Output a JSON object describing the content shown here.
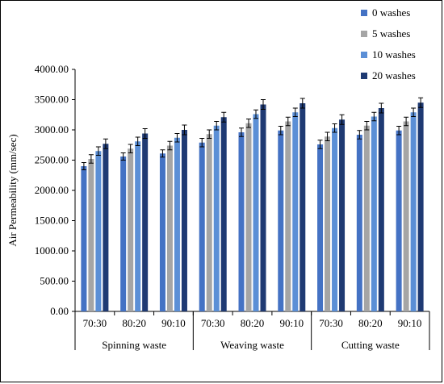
{
  "chart_data": {
    "type": "bar",
    "title": "",
    "ylabel": "Air Permeability (mm/sec)",
    "xlabel": "",
    "ylim": [
      0,
      4000
    ],
    "yticks": [
      0,
      500,
      1000,
      1500,
      2000,
      2500,
      3000,
      3500,
      4000
    ],
    "ytick_labels": [
      "0.00",
      "500.00",
      "1000.00",
      "1500.00",
      "2000.00",
      "2500.00",
      "3000.00",
      "3500.00",
      "4000.00"
    ],
    "grid": false,
    "legend_position": "top-right",
    "groups": [
      {
        "label": "Spinning waste",
        "categories": [
          "70:30",
          "80:20",
          "90:10"
        ]
      },
      {
        "label": "Weaving waste",
        "categories": [
          "70:30",
          "80:20",
          "90:10"
        ]
      },
      {
        "label": "Cutting waste",
        "categories": [
          "70:30",
          "80:20",
          "90:10"
        ]
      }
    ],
    "series": [
      {
        "name": "0 washes",
        "color": "#4472c4",
        "values": [
          2400,
          2560,
          2610,
          2790,
          2960,
          2990,
          2760,
          2920,
          2990
        ],
        "errors": [
          60,
          60,
          60,
          70,
          70,
          70,
          70,
          70,
          70
        ]
      },
      {
        "name": "5 washes",
        "color": "#a5a5a5",
        "values": [
          2520,
          2690,
          2740,
          2930,
          3110,
          3140,
          2890,
          3070,
          3140
        ],
        "errors": [
          70,
          70,
          70,
          70,
          70,
          70,
          70,
          70,
          70
        ]
      },
      {
        "name": "10 washes",
        "color": "#5b8fd6",
        "values": [
          2650,
          2810,
          2870,
          3070,
          3260,
          3290,
          3030,
          3220,
          3290
        ],
        "errors": [
          70,
          70,
          70,
          70,
          70,
          70,
          70,
          70,
          70
        ]
      },
      {
        "name": "20 washes",
        "color": "#1f3a73",
        "values": [
          2770,
          2940,
          3000,
          3210,
          3420,
          3440,
          3170,
          3360,
          3450
        ],
        "errors": [
          80,
          80,
          80,
          80,
          80,
          80,
          80,
          80,
          80
        ]
      }
    ]
  }
}
